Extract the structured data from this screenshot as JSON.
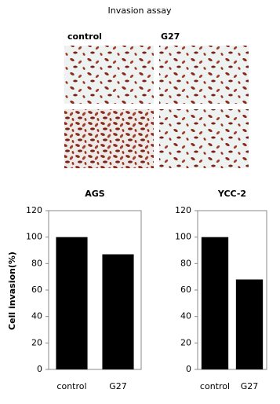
{
  "figure_title": "Invasion assay",
  "image_labels": [
    "control",
    "G27"
  ],
  "chart_data": [
    {
      "type": "bar",
      "title": "AGS",
      "y_label": "Cell invasion(%)",
      "categories": [
        "control",
        "G27"
      ],
      "values": [
        100,
        87
      ],
      "color": "#000000",
      "ylim": [
        0,
        120
      ],
      "yticks": [
        0,
        20,
        40,
        60,
        80,
        100,
        120
      ]
    },
    {
      "type": "bar",
      "title": "YCC-2",
      "categories": [
        "control",
        "G27"
      ],
      "values": [
        100,
        68
      ],
      "color": "#000000",
      "ylim": [
        0,
        120
      ],
      "yticks": [
        0,
        20,
        40,
        60,
        80,
        100,
        120
      ]
    }
  ]
}
